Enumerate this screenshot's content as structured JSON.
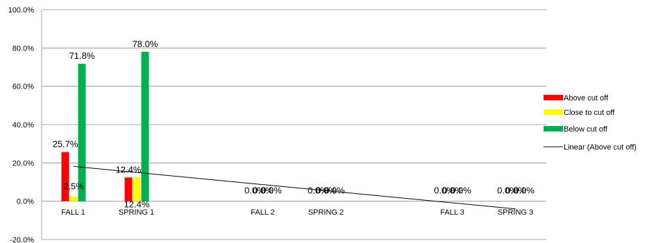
{
  "chart_data": {
    "type": "bar",
    "categories": [
      "FALL 1",
      "SPRING 1",
      "",
      "FALL 2",
      "SPRING 2",
      "",
      "FALL 3",
      "SPRING 3"
    ],
    "series": [
      {
        "name": "Above cut off",
        "color": "#ff0000",
        "values": [
          25.7,
          12.4,
          null,
          0.0,
          0.0,
          null,
          0.0,
          0.0
        ],
        "labels": [
          "25.7%",
          "12.4%",
          "",
          "0.0%",
          "0.0%",
          "",
          "0.0%",
          "0.0%"
        ]
      },
      {
        "name": "Close to cut off",
        "color": "#ffff00",
        "values": [
          2.5,
          12.4,
          null,
          0.0,
          0.0,
          null,
          0.0,
          0.0
        ],
        "labels": [
          "2.5%",
          "12.4%",
          "",
          "0.0%",
          "0.0%",
          "",
          "0.0%",
          "0.0%"
        ]
      },
      {
        "name": "Below cut off",
        "color": "#00b050",
        "values": [
          71.8,
          78.0,
          null,
          0.0,
          0.0,
          null,
          0.0,
          0.0
        ],
        "labels": [
          "71.8%",
          "78.0%",
          "",
          "0.0%",
          "0.0%",
          "",
          "0.0%",
          "0.0%"
        ]
      }
    ],
    "trendline": {
      "name": "Linear (Above cut off)",
      "type": "linear",
      "of_series": "Above cut off",
      "color": "#000000",
      "start": 18.2,
      "end": -4.0
    },
    "yticks": [
      -20,
      0,
      20,
      40,
      60,
      80,
      100
    ],
    "ytick_labels": [
      "-20.0%",
      "0.0%",
      "20.0%",
      "40.0%",
      "60.0%",
      "80.0%",
      "100.0%"
    ],
    "ylim": [
      -20,
      100
    ],
    "grid": true,
    "legend_position": "right",
    "title": "",
    "xlabel": "",
    "ylabel": ""
  }
}
